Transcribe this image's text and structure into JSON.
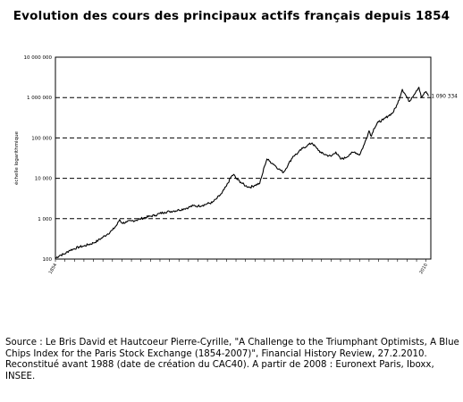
{
  "title": "Evolution des cours des principaux actifs français depuis 1854",
  "source_lines": [
    "Source : Le Bris David et Hautcoeur Pierre-Cyrille, \"A Challenge to the Triumphant Optimists, A Blue Chips Index for the Paris Stock Exchange (1854-2007)\", Financial History Review, 27.2.2010.",
    "Reconstitué avant 1988 (date de création du CAC40). A partir de 2008 : Euronext Paris, Iboxx, INSEE."
  ],
  "chart_data": {
    "type": "line",
    "title": "Evolution des cours des principaux actifs français depuis 1854",
    "xlabel": "",
    "ylabel": "échelle logarithmique",
    "y_scale": "log",
    "ylim": [
      100,
      10000000
    ],
    "xlim": [
      1854,
      2012
    ],
    "y_ticks": [
      {
        "value": 10000000,
        "label": "10 000 000"
      },
      {
        "value": 1000000,
        "label": "1 000 000"
      },
      {
        "value": 100000,
        "label": "100 000"
      },
      {
        "value": 10000,
        "label": "10 000"
      },
      {
        "value": 1000,
        "label": "1 000"
      },
      {
        "value": 100,
        "label": "100"
      }
    ],
    "x_ticks": [
      {
        "value": 1854,
        "label": "1854"
      },
      {
        "value": 1858,
        "label": ""
      },
      {
        "value": 1862,
        "label": ""
      },
      {
        "value": 1866,
        "label": ""
      },
      {
        "value": 1870,
        "label": ""
      },
      {
        "value": 1874,
        "label": ""
      },
      {
        "value": 1878,
        "label": ""
      },
      {
        "value": 1882,
        "label": ""
      },
      {
        "value": 1886,
        "label": ""
      },
      {
        "value": 1890,
        "label": ""
      },
      {
        "value": 1894,
        "label": ""
      },
      {
        "value": 1898,
        "label": ""
      },
      {
        "value": 1902,
        "label": ""
      },
      {
        "value": 1906,
        "label": ""
      },
      {
        "value": 1910,
        "label": ""
      },
      {
        "value": 1914,
        "label": ""
      },
      {
        "value": 1918,
        "label": ""
      },
      {
        "value": 1922,
        "label": ""
      },
      {
        "value": 1926,
        "label": ""
      },
      {
        "value": 1930,
        "label": ""
      },
      {
        "value": 1934,
        "label": ""
      },
      {
        "value": 1938,
        "label": ""
      },
      {
        "value": 1942,
        "label": ""
      },
      {
        "value": 1946,
        "label": ""
      },
      {
        "value": 1950,
        "label": ""
      },
      {
        "value": 1954,
        "label": ""
      },
      {
        "value": 1958,
        "label": ""
      },
      {
        "value": 1962,
        "label": ""
      },
      {
        "value": 1966,
        "label": ""
      },
      {
        "value": 1970,
        "label": ""
      },
      {
        "value": 1974,
        "label": ""
      },
      {
        "value": 1978,
        "label": ""
      },
      {
        "value": 1982,
        "label": ""
      },
      {
        "value": 1986,
        "label": ""
      },
      {
        "value": 1990,
        "label": ""
      },
      {
        "value": 1994,
        "label": ""
      },
      {
        "value": 1998,
        "label": ""
      },
      {
        "value": 2002,
        "label": ""
      },
      {
        "value": 2006,
        "label": ""
      },
      {
        "value": 2010,
        "label": "2010"
      }
    ],
    "grid": "horizontal-dashed",
    "series": [
      {
        "name": "",
        "color": "#000000",
        "points": [
          [
            1854,
            105
          ],
          [
            1856,
            125
          ],
          [
            1858,
            135
          ],
          [
            1860,
            165
          ],
          [
            1862,
            180
          ],
          [
            1864,
            200
          ],
          [
            1866,
            210
          ],
          [
            1868,
            230
          ],
          [
            1870,
            250
          ],
          [
            1872,
            290
          ],
          [
            1874,
            350
          ],
          [
            1876,
            420
          ],
          [
            1878,
            520
          ],
          [
            1880,
            720
          ],
          [
            1881,
            950
          ],
          [
            1882,
            780
          ],
          [
            1884,
            820
          ],
          [
            1886,
            880
          ],
          [
            1888,
            920
          ],
          [
            1890,
            1000
          ],
          [
            1892,
            1080
          ],
          [
            1894,
            1150
          ],
          [
            1896,
            1220
          ],
          [
            1898,
            1350
          ],
          [
            1900,
            1450
          ],
          [
            1902,
            1500
          ],
          [
            1904,
            1560
          ],
          [
            1906,
            1650
          ],
          [
            1908,
            1750
          ],
          [
            1910,
            1900
          ],
          [
            1912,
            2100
          ],
          [
            1914,
            2050
          ],
          [
            1916,
            2150
          ],
          [
            1918,
            2350
          ],
          [
            1920,
            2500
          ],
          [
            1922,
            3200
          ],
          [
            1924,
            4200
          ],
          [
            1926,
            6500
          ],
          [
            1928,
            11000
          ],
          [
            1929,
            12500
          ],
          [
            1930,
            10000
          ],
          [
            1932,
            8000
          ],
          [
            1934,
            6500
          ],
          [
            1936,
            6000
          ],
          [
            1938,
            6800
          ],
          [
            1940,
            7500
          ],
          [
            1941,
            12000
          ],
          [
            1942,
            20000
          ],
          [
            1943,
            30000
          ],
          [
            1944,
            27000
          ],
          [
            1946,
            22000
          ],
          [
            1948,
            17000
          ],
          [
            1950,
            14000
          ],
          [
            1952,
            22000
          ],
          [
            1954,
            35000
          ],
          [
            1956,
            42000
          ],
          [
            1958,
            55000
          ],
          [
            1960,
            65000
          ],
          [
            1962,
            75000
          ],
          [
            1964,
            55000
          ],
          [
            1966,
            42000
          ],
          [
            1968,
            38000
          ],
          [
            1970,
            35000
          ],
          [
            1972,
            45000
          ],
          [
            1974,
            30000
          ],
          [
            1976,
            32000
          ],
          [
            1978,
            40000
          ],
          [
            1980,
            45000
          ],
          [
            1982,
            38000
          ],
          [
            1984,
            70000
          ],
          [
            1986,
            150000
          ],
          [
            1987,
            110000
          ],
          [
            1988,
            170000
          ],
          [
            1990,
            250000
          ],
          [
            1992,
            280000
          ],
          [
            1994,
            350000
          ],
          [
            1996,
            420000
          ],
          [
            1998,
            700000
          ],
          [
            2000,
            1600000
          ],
          [
            2002,
            1000000
          ],
          [
            2003,
            800000
          ],
          [
            2004,
            1000000
          ],
          [
            2006,
            1500000
          ],
          [
            2007,
            1800000
          ],
          [
            2008,
            1000000
          ],
          [
            2009,
            1200000
          ],
          [
            2010,
            1400000
          ],
          [
            2011,
            1090334
          ]
        ]
      }
    ],
    "annotations": [
      {
        "x": 2011,
        "y": 1090334,
        "text": "1 090 334"
      }
    ],
    "legend": "none"
  }
}
